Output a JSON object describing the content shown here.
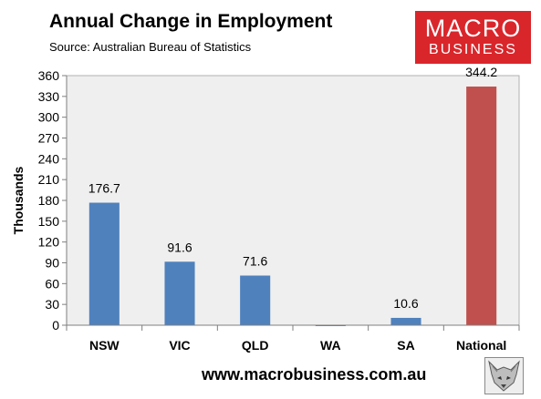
{
  "header": {
    "title": "Annual Change in Employment",
    "source": "Source: Australian Bureau of Statistics"
  },
  "logo": {
    "line1": "MACRO",
    "line2": "BUSINESS",
    "bg_color": "#d9262b"
  },
  "footer": {
    "url": "www.macrobusiness.com.au",
    "badge_icon": "fox-head-icon"
  },
  "chart_data": {
    "type": "bar",
    "title": "Annual Change in Employment",
    "subtitle": "Source: Australian Bureau of Statistics",
    "xlabel": "",
    "ylabel": "Thousands",
    "categories": [
      "NSW",
      "VIC",
      "QLD",
      "WA",
      "SA",
      "National"
    ],
    "values": [
      176.7,
      91.6,
      71.6,
      -1.0,
      10.6,
      344.2
    ],
    "data_labels": [
      "176.7",
      "91.6",
      "71.6",
      "",
      "10.6",
      "344.2"
    ],
    "colors": [
      "#4f81bd",
      "#4f81bd",
      "#4f81bd",
      "#4f81bd",
      "#4f81bd",
      "#c0504d"
    ],
    "ylim": [
      0,
      360
    ],
    "yticks": [
      0,
      30,
      60,
      90,
      120,
      150,
      180,
      210,
      240,
      270,
      300,
      330,
      360
    ],
    "plot_background": "#efefef",
    "grid": false,
    "legend": "none"
  }
}
